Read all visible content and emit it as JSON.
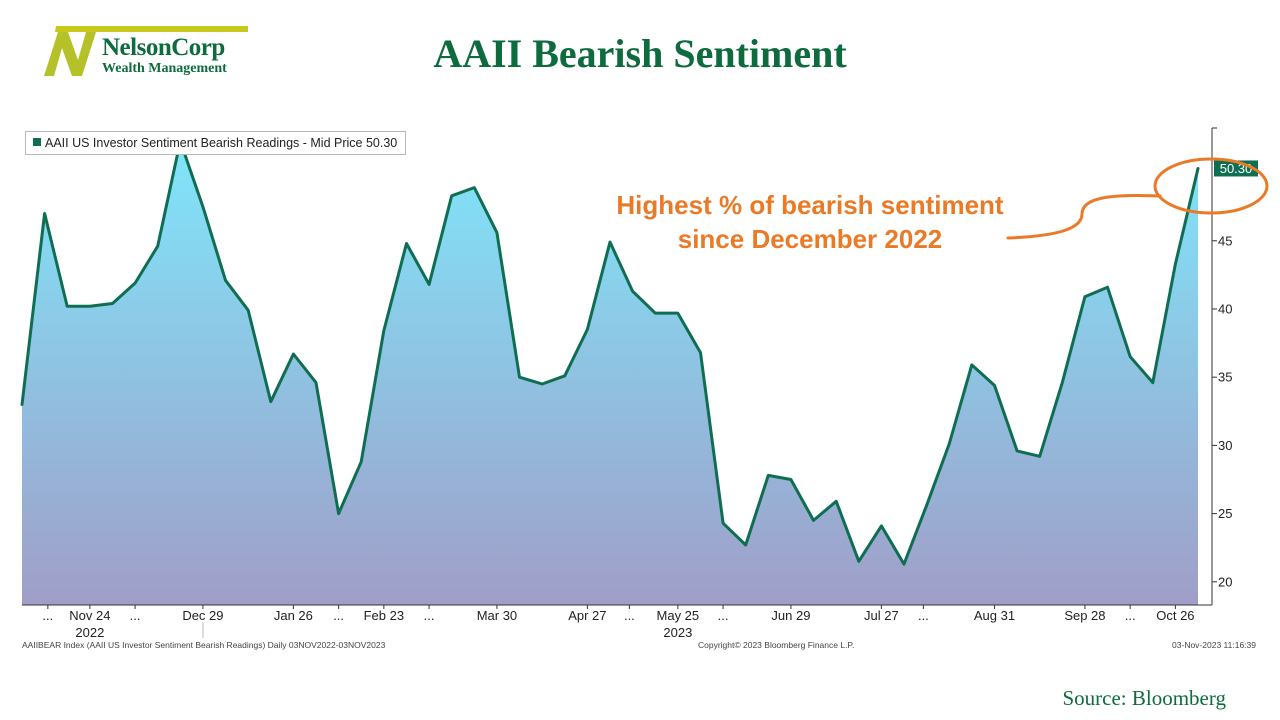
{
  "logo": {
    "name": "NelsonCorp",
    "subtitle": "Wealth Management"
  },
  "title": "AAII Bearish Sentiment",
  "legend": {
    "label": "AAII US Investor Sentiment Bearish Readings - Mid Price 50.30"
  },
  "annotation": {
    "line1": "Highest % of bearish sentiment",
    "line2": "since December 2022"
  },
  "last_value_label": "50.30",
  "footer": {
    "left": "AAIIBEAR Index (AAII US Investor Sentiment Bearish Readings)  Daily 03NOV2022-03NOV2023",
    "center": "Copyright© 2023 Bloomberg Finance L.P.",
    "right": "03-Nov-2023 11:16:39"
  },
  "source": "Source: Bloomberg",
  "colors": {
    "line": "#0f6e52",
    "fill_top": "#7fe6fb",
    "fill_bottom": "#a09ec8",
    "annotation": "#ea7a26",
    "title": "#0e6b3e"
  },
  "chart_data": {
    "type": "area",
    "title": "AAII US Investor Sentiment Bearish Readings - Mid Price 50.30",
    "x": [
      "2022-11-03",
      "2022-11-10",
      "2022-11-17",
      "2022-11-24",
      "2022-12-01",
      "2022-12-08",
      "2022-12-15",
      "2022-12-22",
      "2022-12-29",
      "2023-01-05",
      "2023-01-12",
      "2023-01-19",
      "2023-01-26",
      "2023-02-02",
      "2023-02-09",
      "2023-02-16",
      "2023-02-23",
      "2023-03-02",
      "2023-03-09",
      "2023-03-16",
      "2023-03-23",
      "2023-03-30",
      "2023-04-06",
      "2023-04-13",
      "2023-04-20",
      "2023-04-27",
      "2023-05-04",
      "2023-05-11",
      "2023-05-18",
      "2023-05-25",
      "2023-06-01",
      "2023-06-08",
      "2023-06-15",
      "2023-06-22",
      "2023-06-29",
      "2023-07-06",
      "2023-07-13",
      "2023-07-20",
      "2023-07-27",
      "2023-08-03",
      "2023-08-10",
      "2023-08-17",
      "2023-08-24",
      "2023-08-31",
      "2023-09-07",
      "2023-09-14",
      "2023-09-21",
      "2023-09-28",
      "2023-10-05",
      "2023-10-12",
      "2023-10-19",
      "2023-10-26",
      "2023-11-02"
    ],
    "series": [
      {
        "name": "AAII US Investor Sentiment Bearish Readings",
        "values": [
          33.0,
          47.0,
          40.2,
          40.2,
          40.4,
          41.9,
          44.6,
          52.3,
          47.5,
          42.1,
          39.9,
          33.2,
          36.7,
          34.6,
          25.0,
          28.8,
          38.4,
          44.8,
          41.8,
          48.3,
          48.9,
          45.6,
          35.0,
          34.5,
          35.1,
          38.5,
          44.9,
          41.3,
          39.7,
          39.7,
          36.8,
          24.3,
          22.7,
          27.8,
          27.5,
          24.5,
          25.9,
          21.5,
          24.1,
          21.3,
          25.6,
          30.1,
          35.9,
          34.4,
          29.6,
          29.2,
          34.6,
          40.9,
          41.6,
          36.5,
          34.6,
          43.3,
          50.3
        ]
      }
    ],
    "ylim": [
      18.3,
      54.0
    ],
    "y_ticks": [
      20,
      25,
      30,
      35,
      40,
      45
    ],
    "x_tick_labels": [
      {
        "label": "...",
        "x": "2022-11-11"
      },
      {
        "label": "Nov 24",
        "x": "2022-11-24"
      },
      {
        "label": "...",
        "x": "2022-12-08"
      },
      {
        "label": "Dec 29",
        "x": "2022-12-29"
      },
      {
        "label": "Jan 26",
        "x": "2023-01-26"
      },
      {
        "label": "...",
        "x": "2023-02-09"
      },
      {
        "label": "Feb 23",
        "x": "2023-02-23"
      },
      {
        "label": "...",
        "x": "2023-03-09"
      },
      {
        "label": "Mar 30",
        "x": "2023-03-30"
      },
      {
        "label": "Apr 27",
        "x": "2023-04-27"
      },
      {
        "label": "...",
        "x": "2023-05-10"
      },
      {
        "label": "May 25",
        "x": "2023-05-25"
      },
      {
        "label": "...",
        "x": "2023-06-08"
      },
      {
        "label": "Jun 29",
        "x": "2023-06-29"
      },
      {
        "label": "Jul 27",
        "x": "2023-07-27"
      },
      {
        "label": "...",
        "x": "2023-08-09"
      },
      {
        "label": "Aug 31",
        "x": "2023-08-31"
      },
      {
        "label": "Sep 28",
        "x": "2023-09-28"
      },
      {
        "label": "...",
        "x": "2023-10-12"
      },
      {
        "label": "Oct 26",
        "x": "2023-10-26"
      }
    ],
    "year_labels": [
      {
        "label": "2022",
        "x": "2022-11-24"
      },
      {
        "label": "2023",
        "x": "2023-05-25"
      }
    ],
    "legend_position": "top-left",
    "grid": false
  }
}
